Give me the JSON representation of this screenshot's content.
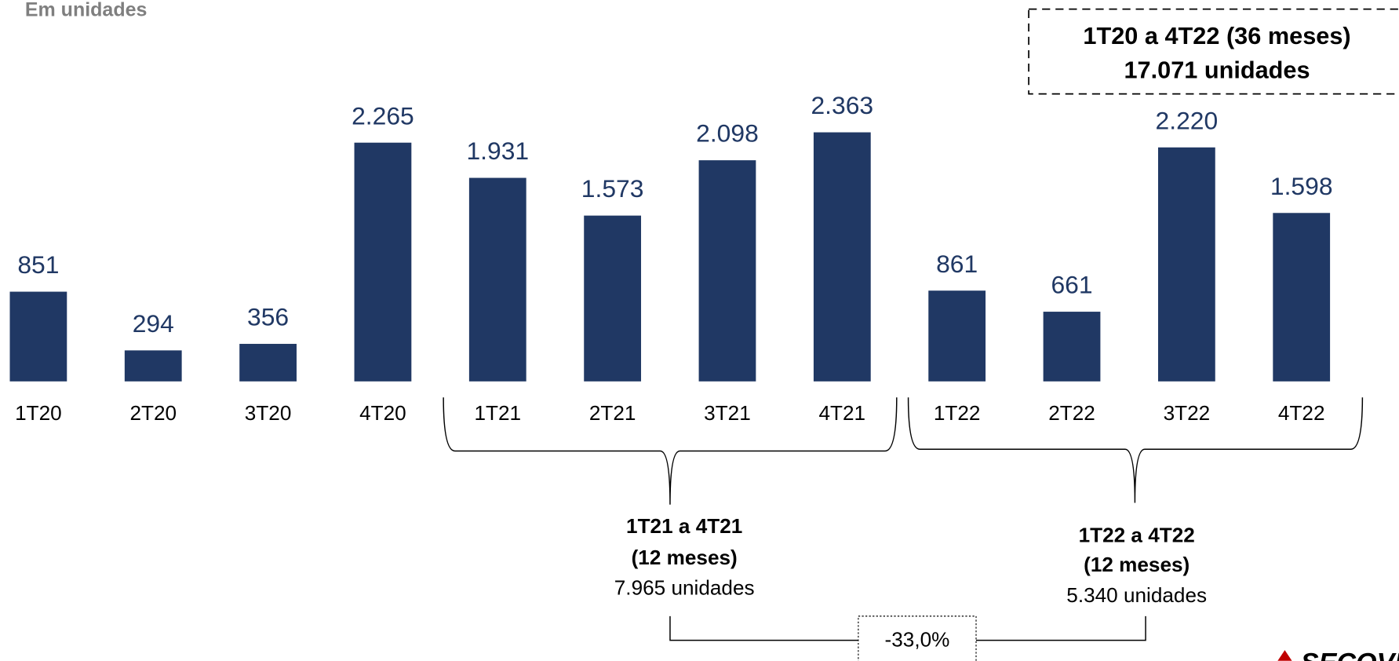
{
  "chart_data": {
    "type": "bar",
    "subtitle": "Em unidades",
    "categories": [
      "1T20",
      "2T20",
      "3T20",
      "4T20",
      "1T21",
      "2T21",
      "3T21",
      "4T21",
      "1T22",
      "2T22",
      "3T22",
      "4T22"
    ],
    "values": [
      851,
      294,
      356,
      2265,
      1931,
      1573,
      2098,
      2363,
      861,
      661,
      2220,
      1598
    ],
    "value_labels": [
      "851",
      "294",
      "356",
      "2.265",
      "1.931",
      "1.573",
      "2.098",
      "2.363",
      "861",
      "661",
      "2.220",
      "1.598"
    ],
    "color": "#203864",
    "total_box": [
      "1T20 a 4T22 (36 meses)",
      "17.071 unidades"
    ],
    "group_2021": [
      "1T21 a 4T21",
      "(12 meses)",
      "7.965 unidades"
    ],
    "group_2022": [
      "1T22 a 4T22",
      "(12 meses)",
      "5.340 unidades"
    ],
    "change": "-33,0%",
    "logo": "SECOVI"
  }
}
